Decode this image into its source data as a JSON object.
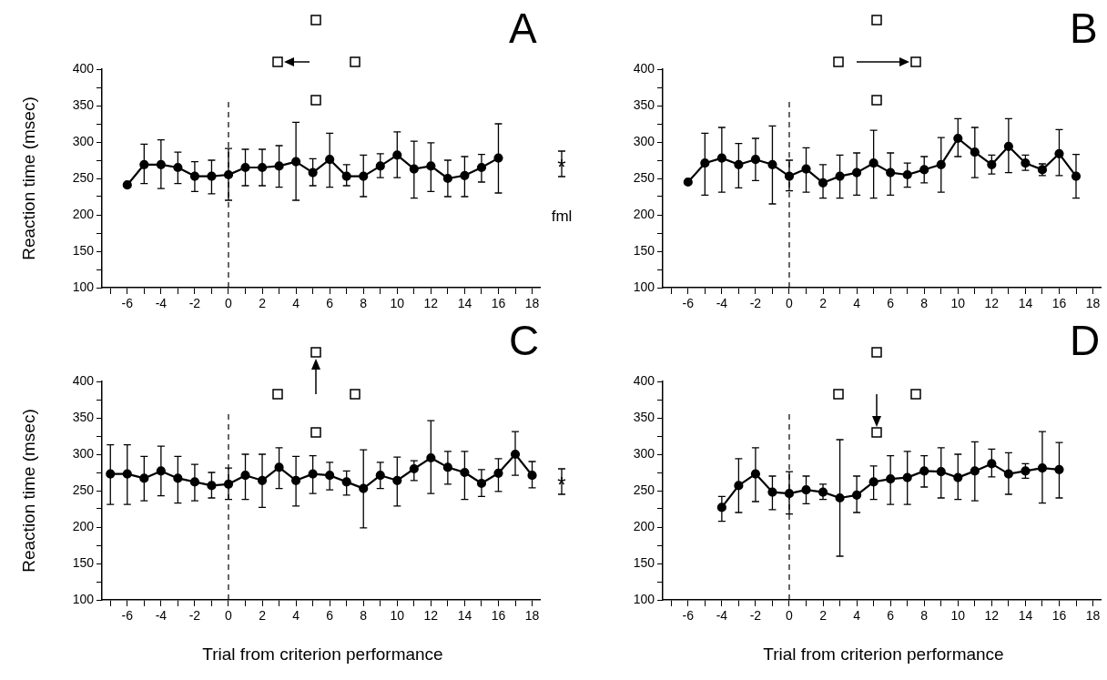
{
  "chart_data": [
    {
      "type": "line",
      "title": "A",
      "ylabel": "Reaction time (msec)",
      "x": [
        -6,
        -5,
        -4,
        -3,
        -2,
        -1,
        0,
        1,
        2,
        3,
        4,
        5,
        6,
        7,
        8,
        9,
        10,
        11,
        12,
        13,
        14,
        15,
        16
      ],
      "series": [
        {
          "color": "#000000",
          "values": [
            241,
            269,
            269,
            265,
            253,
            253,
            255,
            265,
            265,
            267,
            273,
            258,
            276,
            253,
            253,
            267,
            282,
            263,
            267,
            250,
            254,
            265,
            278
          ],
          "errors": [
            null,
            [
              243,
              297
            ],
            [
              236,
              303
            ],
            [
              243,
              286
            ],
            [
              232,
              273
            ],
            [
              229,
              275
            ],
            [
              220,
              291
            ],
            [
              240,
              290
            ],
            [
              240,
              290
            ],
            [
              238,
              295
            ],
            [
              220,
              327
            ],
            [
              240,
              277
            ],
            [
              238,
              312
            ],
            [
              240,
              269
            ],
            [
              225,
              282
            ],
            [
              251,
              284
            ],
            [
              251,
              314
            ],
            [
              223,
              301
            ],
            [
              232,
              299
            ],
            [
              225,
              275
            ],
            [
              225,
              280
            ],
            [
              245,
              283
            ],
            [
              230,
              325
            ]
          ]
        }
      ],
      "marker": "circle",
      "xlim": [
        -7.5,
        18.5
      ],
      "xticks": [
        {
          "value": -7,
          "label": null
        },
        -6,
        {
          "value": -5,
          "label": null
        },
        -4,
        {
          "value": -3,
          "label": null
        },
        -2,
        {
          "value": -1,
          "label": null
        },
        0,
        {
          "value": 1,
          "label": null
        },
        2,
        {
          "value": 3,
          "label": null
        },
        4,
        {
          "value": 5,
          "label": null
        },
        6,
        {
          "value": 7,
          "label": null
        },
        8,
        {
          "value": 9,
          "label": null
        },
        10,
        {
          "value": 11,
          "label": null
        },
        12,
        {
          "value": 13,
          "label": null
        },
        14,
        {
          "value": 15,
          "label": null
        },
        16,
        {
          "value": 17,
          "label": null
        },
        18
      ],
      "ylim": [
        100,
        400
      ],
      "yticks": [
        100,
        {
          "value": 125,
          "label": null
        },
        150,
        {
          "value": 175,
          "label": null
        },
        200,
        {
          "value": 225,
          "label": null
        },
        250,
        {
          "value": 275,
          "label": null
        },
        300,
        {
          "value": 325,
          "label": null
        },
        350,
        {
          "value": 375,
          "label": null
        },
        400
      ],
      "ref_lines": [
        {
          "axis": "x",
          "value": 0,
          "line_style": "dashed"
        }
      ],
      "annotations": [
        "*",
        "fml"
      ]
    },
    {
      "type": "line",
      "title": "B",
      "x": [
        -6,
        -5,
        -4,
        -3,
        -2,
        -1,
        0,
        1,
        2,
        3,
        4,
        5,
        6,
        7,
        8,
        9,
        10,
        11,
        12,
        13,
        14,
        15,
        16,
        17
      ],
      "series": [
        {
          "color": "#000000",
          "values": [
            245,
            271,
            278,
            269,
            276,
            269,
            253,
            263,
            244,
            253,
            258,
            271,
            258,
            255,
            262,
            269,
            305,
            286,
            269,
            294,
            271,
            262,
            284,
            253
          ],
          "errors": [
            null,
            [
              227,
              312
            ],
            [
              231,
              320
            ],
            [
              237,
              298
            ],
            [
              247,
              305
            ],
            [
              215,
              322
            ],
            [
              233,
              275
            ],
            [
              231,
              292
            ],
            [
              223,
              269
            ],
            [
              223,
              282
            ],
            [
              227,
              285
            ],
            [
              223,
              316
            ],
            [
              227,
              285
            ],
            [
              238,
              271
            ],
            [
              244,
              280
            ],
            [
              231,
              306
            ],
            [
              280,
              332
            ],
            [
              251,
              320
            ],
            [
              256,
              282
            ],
            [
              258,
              332
            ],
            [
              261,
              282
            ],
            [
              254,
              270
            ],
            [
              254,
              317
            ],
            [
              223,
              283
            ]
          ]
        }
      ],
      "marker": "circle",
      "xlim": [
        -7.5,
        18.5
      ],
      "xticks": [
        {
          "value": -7,
          "label": null
        },
        -6,
        {
          "value": -5,
          "label": null
        },
        -4,
        {
          "value": -3,
          "label": null
        },
        -2,
        {
          "value": -1,
          "label": null
        },
        0,
        {
          "value": 1,
          "label": null
        },
        2,
        {
          "value": 3,
          "label": null
        },
        4,
        {
          "value": 5,
          "label": null
        },
        6,
        {
          "value": 7,
          "label": null
        },
        8,
        {
          "value": 9,
          "label": null
        },
        10,
        {
          "value": 11,
          "label": null
        },
        12,
        {
          "value": 13,
          "label": null
        },
        14,
        {
          "value": 15,
          "label": null
        },
        16,
        {
          "value": 17,
          "label": null
        },
        18
      ],
      "ylim": [
        100,
        400
      ],
      "yticks": [
        100,
        {
          "value": 125,
          "label": null
        },
        150,
        {
          "value": 175,
          "label": null
        },
        200,
        {
          "value": 225,
          "label": null
        },
        250,
        {
          "value": 275,
          "label": null
        },
        300,
        {
          "value": 325,
          "label": null
        },
        350,
        {
          "value": 375,
          "label": null
        },
        400
      ],
      "ref_lines": [
        {
          "axis": "x",
          "value": 0,
          "line_style": "dashed"
        }
      ]
    },
    {
      "type": "line",
      "title": "C",
      "ylabel": "Reaction time (msec)",
      "xlabel": "Trial from criterion performance",
      "x": [
        -7,
        -6,
        -5,
        -4,
        -3,
        -2,
        -1,
        0,
        1,
        2,
        3,
        4,
        5,
        6,
        7,
        8,
        9,
        10,
        11,
        12,
        13,
        14,
        15,
        16,
        17,
        18
      ],
      "series": [
        {
          "color": "#000000",
          "values": [
            273,
            273,
            267,
            277,
            267,
            262,
            257,
            259,
            271,
            264,
            282,
            264,
            273,
            271,
            262,
            253,
            271,
            264,
            280,
            295,
            282,
            275,
            260,
            274,
            300,
            271
          ],
          "errors": [
            [
              231,
              313
            ],
            [
              231,
              313
            ],
            [
              236,
              297
            ],
            [
              243,
              311
            ],
            [
              233,
              297
            ],
            [
              236,
              286
            ],
            [
              240,
              275
            ],
            [
              238,
              281
            ],
            [
              238,
              300
            ],
            [
              227,
              300
            ],
            [
              253,
              309
            ],
            [
              229,
              297
            ],
            [
              246,
              298
            ],
            [
              251,
              289
            ],
            [
              244,
              277
            ],
            [
              199,
              306
            ],
            [
              253,
              289
            ],
            [
              229,
              296
            ],
            [
              264,
              291
            ],
            [
              246,
              346
            ],
            [
              259,
              304
            ],
            [
              238,
              304
            ],
            [
              242,
              279
            ],
            [
              249,
              294
            ],
            [
              271,
              331
            ],
            [
              254,
              290
            ]
          ]
        }
      ],
      "marker": "circle",
      "xlim": [
        -7.5,
        18.5
      ],
      "xticks": [
        {
          "value": -7,
          "label": null
        },
        -6,
        {
          "value": -5,
          "label": null
        },
        -4,
        {
          "value": -3,
          "label": null
        },
        -2,
        {
          "value": -1,
          "label": null
        },
        0,
        {
          "value": 1,
          "label": null
        },
        2,
        {
          "value": 3,
          "label": null
        },
        4,
        {
          "value": 5,
          "label": null
        },
        6,
        {
          "value": 7,
          "label": null
        },
        8,
        {
          "value": 9,
          "label": null
        },
        10,
        {
          "value": 11,
          "label": null
        },
        12,
        {
          "value": 13,
          "label": null
        },
        14,
        {
          "value": 15,
          "label": null
        },
        16,
        {
          "value": 17,
          "label": null
        },
        18
      ],
      "ylim": [
        100,
        400
      ],
      "yticks": [
        100,
        {
          "value": 125,
          "label": null
        },
        150,
        {
          "value": 175,
          "label": null
        },
        200,
        {
          "value": 225,
          "label": null
        },
        250,
        {
          "value": 275,
          "label": null
        },
        300,
        {
          "value": 325,
          "label": null
        },
        350,
        {
          "value": 375,
          "label": null
        },
        400
      ],
      "ref_lines": [
        {
          "axis": "x",
          "value": 0,
          "line_style": "dashed"
        }
      ],
      "annotations": [
        "*"
      ]
    },
    {
      "type": "line",
      "title": "D",
      "xlabel": "Trial from criterion performance",
      "x": [
        -4,
        -3,
        -2,
        -1,
        0,
        1,
        2,
        3,
        4,
        5,
        6,
        7,
        8,
        9,
        10,
        11,
        12,
        13,
        14,
        15,
        16
      ],
      "series": [
        {
          "color": "#000000",
          "values": [
            227,
            257,
            273,
            248,
            246,
            251,
            248,
            240,
            244,
            262,
            266,
            268,
            277,
            276,
            268,
            277,
            287,
            273,
            277,
            281,
            279
          ],
          "errors": [
            [
              208,
              242
            ],
            [
              220,
              294
            ],
            [
              235,
              309
            ],
            [
              224,
              270
            ],
            [
              218,
              276
            ],
            [
              232,
              270
            ],
            [
              238,
              259
            ],
            [
              160,
              320
            ],
            [
              220,
              270
            ],
            [
              238,
              284
            ],
            [
              231,
              298
            ],
            [
              231,
              304
            ],
            [
              255,
              298
            ],
            [
              240,
              309
            ],
            [
              238,
              300
            ],
            [
              236,
              317
            ],
            [
              269,
              307
            ],
            [
              245,
              302
            ],
            [
              267,
              287
            ],
            [
              233,
              331
            ],
            [
              240,
              316
            ]
          ]
        }
      ],
      "marker": "circle",
      "xlim": [
        -7.5,
        18.5
      ],
      "xticks": [
        {
          "value": -7,
          "label": null
        },
        -6,
        {
          "value": -5,
          "label": null
        },
        -4,
        {
          "value": -3,
          "label": null
        },
        -2,
        {
          "value": -1,
          "label": null
        },
        0,
        {
          "value": 1,
          "label": null
        },
        2,
        {
          "value": 3,
          "label": null
        },
        4,
        {
          "value": 5,
          "label": null
        },
        6,
        {
          "value": 7,
          "label": null
        },
        8,
        {
          "value": 9,
          "label": null
        },
        10,
        {
          "value": 11,
          "label": null
        },
        12,
        {
          "value": 13,
          "label": null
        },
        14,
        {
          "value": 15,
          "label": null
        },
        16,
        {
          "value": 17,
          "label": null
        },
        18
      ],
      "ylim": [
        100,
        400
      ],
      "yticks": [
        100,
        {
          "value": 125,
          "label": null
        },
        150,
        {
          "value": 175,
          "label": null
        },
        200,
        {
          "value": 225,
          "label": null
        },
        250,
        {
          "value": 275,
          "label": null
        },
        300,
        {
          "value": 325,
          "label": null
        },
        350,
        {
          "value": 375,
          "label": null
        },
        400
      ],
      "ref_lines": [
        {
          "axis": "x",
          "value": 0,
          "line_style": "dashed"
        }
      ]
    }
  ]
}
